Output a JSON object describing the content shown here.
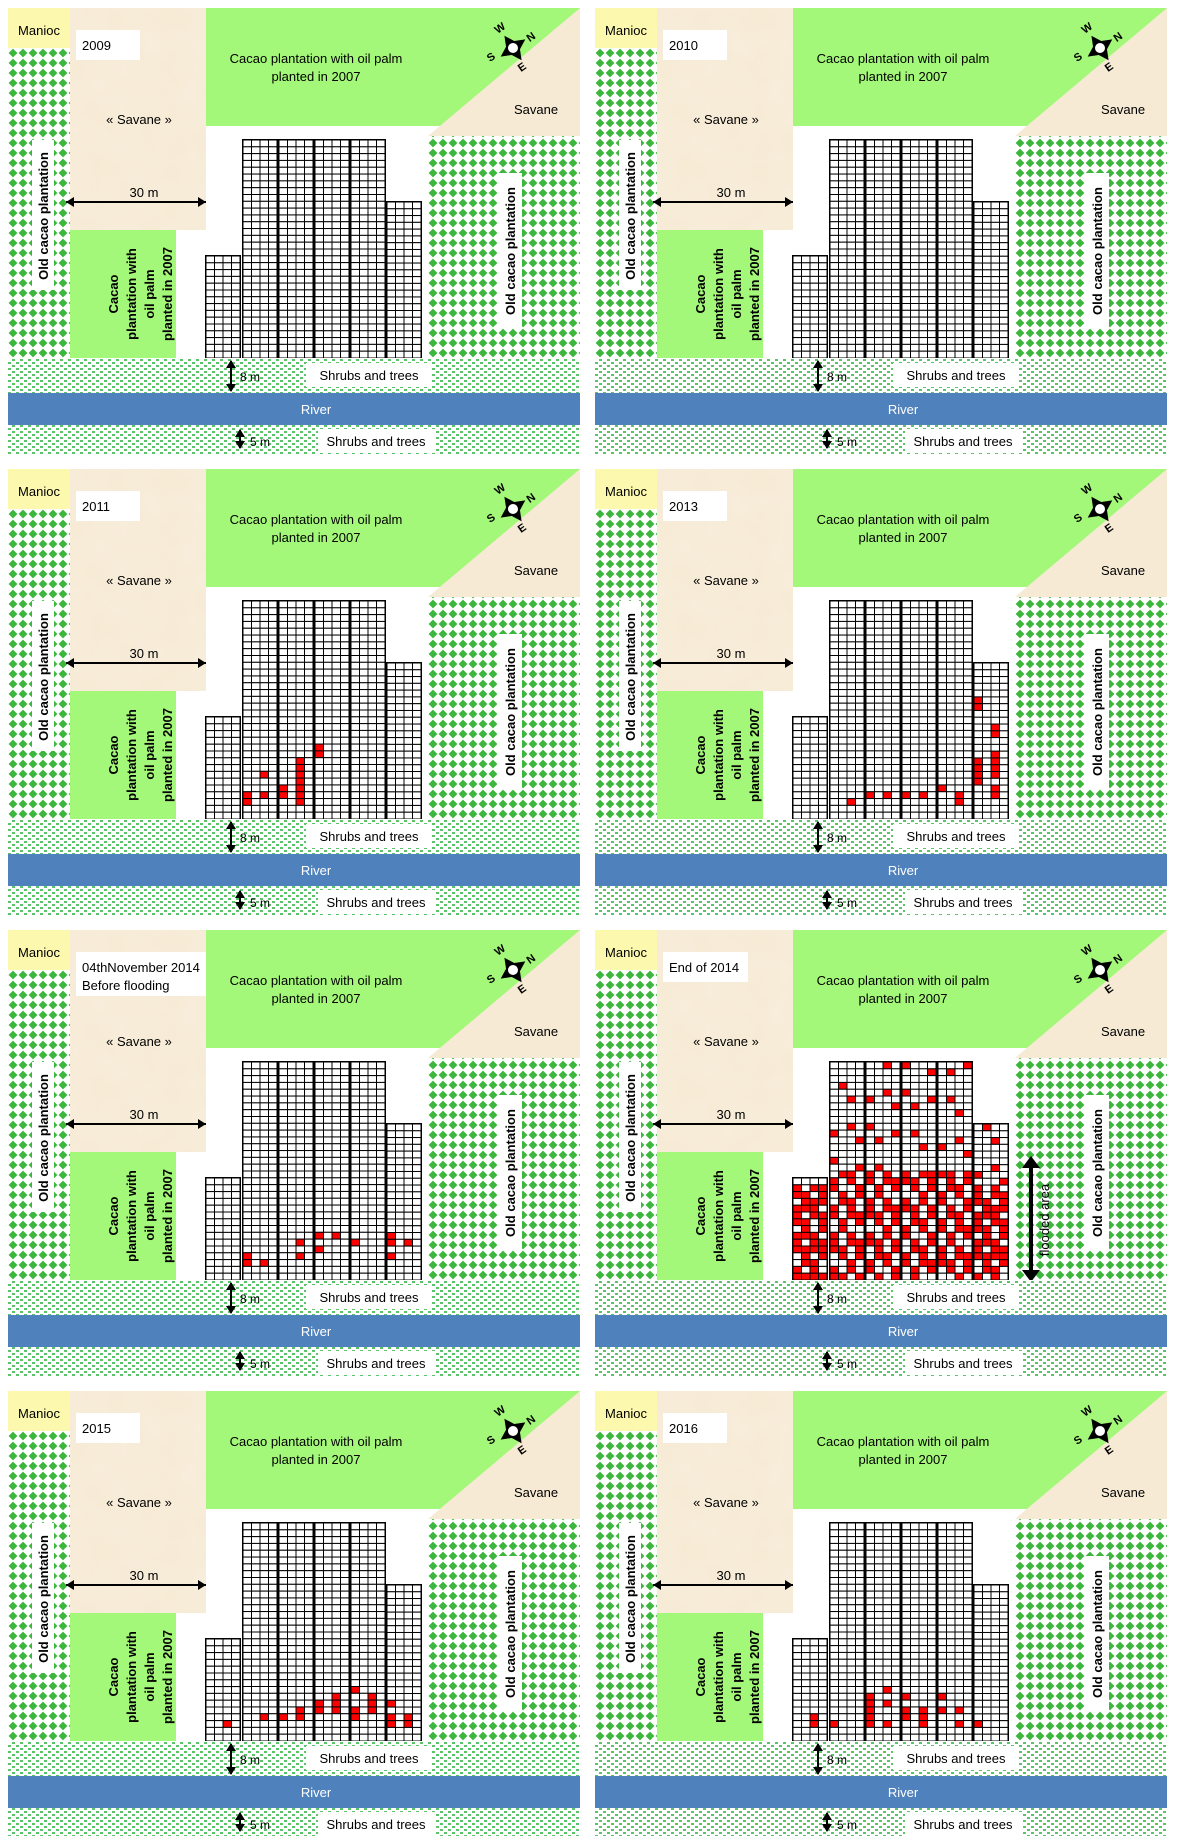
{
  "labels": {
    "manioc": "Manioc",
    "cacao_top": [
      "Cacao plantation with oil palm",
      "planted in 2007"
    ],
    "savane_quoted": "« Savane »",
    "savane": "Savane",
    "old_cacao": "Old cacao plantation",
    "cacao_left": [
      "Cacao",
      "plantation with",
      "oil palm",
      "planted in 2007"
    ],
    "distance_30": "30 m",
    "distance_8": "8 m",
    "distance_5": "5 m",
    "shrubs": "Shrubs and trees",
    "river": "River",
    "flooded": "flooded area",
    "compass": {
      "n": "N",
      "s": "S",
      "e": "E",
      "w": "W"
    }
  },
  "colors": {
    "savane": "#f6ead4",
    "plantation_green": "#a4f879",
    "old_cacao_dot": "#3cb63c",
    "shrubs_dot": "#5bc46b",
    "river": "#4f81bd",
    "yellow": "#ffff99",
    "infected": "#ff0000",
    "grid": "#000000"
  },
  "panels": [
    {
      "year_lines": [
        "2009"
      ],
      "flooded_arrow": false,
      "infected_cells": []
    },
    {
      "year_lines": [
        "2010"
      ],
      "flooded_arrow": false,
      "infected_cells": []
    },
    {
      "year_lines": [
        "2011"
      ],
      "flooded_arrow": false,
      "infected_cells": [
        [
          2,
          15
        ],
        [
          2,
          16
        ],
        [
          3,
          12
        ],
        [
          3,
          15
        ],
        [
          4,
          15
        ],
        [
          5,
          12
        ],
        [
          5,
          13
        ],
        [
          5,
          14
        ],
        [
          5,
          15
        ],
        [
          5,
          16
        ],
        [
          5,
          14
        ],
        [
          4,
          14
        ],
        [
          5,
          11
        ],
        [
          5,
          10
        ],
        [
          6,
          8
        ],
        [
          6,
          9
        ]
      ]
    },
    {
      "year_lines": [
        "2013"
      ],
      "flooded_arrow": false,
      "infected_cells": [
        [
          3,
          16
        ],
        [
          4,
          15
        ],
        [
          5,
          15
        ],
        [
          6,
          15
        ],
        [
          7,
          15
        ],
        [
          8,
          14
        ],
        [
          9,
          15
        ],
        [
          9,
          16
        ],
        [
          10,
          1
        ],
        [
          10,
          2
        ],
        [
          10,
          10
        ],
        [
          10,
          13
        ],
        [
          11,
          5
        ],
        [
          11,
          6
        ],
        [
          11,
          9
        ],
        [
          11,
          10
        ],
        [
          11,
          12
        ],
        [
          11,
          14
        ],
        [
          11,
          15
        ],
        [
          12,
          6
        ],
        [
          12,
          7
        ],
        [
          12,
          8
        ],
        [
          12,
          10
        ],
        [
          12,
          11
        ],
        [
          12,
          12
        ],
        [
          12,
          13
        ],
        [
          12,
          16
        ],
        [
          10,
          12
        ],
        [
          10,
          11
        ],
        [
          11,
          11
        ]
      ]
    },
    {
      "year_lines": [
        "04thNovember 2014",
        "Before flooding"
      ],
      "flooded_arrow": false,
      "infected_cells": [
        [
          2,
          15
        ],
        [
          2,
          16
        ],
        [
          3,
          16
        ],
        [
          5,
          13
        ],
        [
          5,
          15
        ],
        [
          6,
          12
        ],
        [
          6,
          14
        ],
        [
          7,
          12
        ],
        [
          8,
          13
        ],
        [
          10,
          12
        ],
        [
          10,
          13
        ],
        [
          10,
          15
        ],
        [
          11,
          13
        ],
        [
          12,
          16
        ],
        [
          12,
          4
        ]
      ]
    },
    {
      "year_lines": [
        "End of 2014"
      ],
      "flooded_arrow": true,
      "infected_cells": "many"
    },
    {
      "year_lines": [
        "2015"
      ],
      "flooded_arrow": false,
      "infected_cells": [
        [
          1,
          16
        ],
        [
          3,
          15
        ],
        [
          4,
          15
        ],
        [
          5,
          15
        ],
        [
          5,
          14
        ],
        [
          6,
          13
        ],
        [
          6,
          14
        ],
        [
          7,
          12
        ],
        [
          7,
          13
        ],
        [
          7,
          14
        ],
        [
          8,
          14
        ],
        [
          8,
          15
        ],
        [
          9,
          12
        ],
        [
          9,
          13
        ],
        [
          9,
          14
        ],
        [
          10,
          13
        ],
        [
          10,
          15
        ],
        [
          11,
          15
        ],
        [
          11,
          16
        ],
        [
          12,
          6
        ],
        [
          10,
          16
        ],
        [
          8,
          11
        ]
      ]
    },
    {
      "year_lines": [
        "2016"
      ],
      "flooded_arrow": false,
      "infected_cells": [
        [
          1,
          15
        ],
        [
          1,
          16
        ],
        [
          2,
          16
        ],
        [
          4,
          12
        ],
        [
          4,
          13
        ],
        [
          4,
          14
        ],
        [
          4,
          15
        ],
        [
          4,
          16
        ],
        [
          5,
          11
        ],
        [
          5,
          13
        ],
        [
          5,
          16
        ],
        [
          6,
          12
        ],
        [
          6,
          14
        ],
        [
          7,
          15
        ],
        [
          7,
          16
        ],
        [
          8,
          14
        ],
        [
          9,
          14
        ],
        [
          9,
          16
        ],
        [
          10,
          16
        ],
        [
          12,
          15
        ],
        [
          12,
          16
        ],
        [
          8,
          12
        ],
        [
          7,
          14
        ],
        [
          6,
          15
        ]
      ]
    }
  ]
}
